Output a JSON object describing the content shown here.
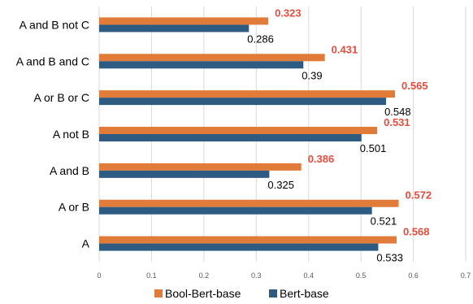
{
  "chart_data": {
    "type": "bar",
    "orientation": "horizontal",
    "categories": [
      "A",
      "A or B",
      "A and B",
      "A not B",
      "A or B or C",
      "A and B and C",
      "A and B not C"
    ],
    "series": [
      {
        "name": "Bool-Bert-base",
        "values": [
          0.568,
          0.572,
          0.386,
          0.531,
          0.565,
          0.431,
          0.323
        ],
        "labels": [
          "0.568",
          "0.572",
          "0.386",
          "0.531",
          "0.565",
          "0.431",
          "0.323"
        ],
        "color": "#e07b39",
        "label_color": "#e84c3d"
      },
      {
        "name": "Bert-base",
        "values": [
          0.533,
          0.521,
          0.325,
          0.501,
          0.548,
          0.39,
          0.286
        ],
        "labels": [
          "0.533",
          "0.521",
          "0.325",
          "0.501",
          "0.548",
          "0.39",
          "0.286"
        ],
        "color": "#2e5b82",
        "label_color": "#000000"
      }
    ],
    "xlim": [
      0,
      0.7
    ],
    "x_ticks": [
      "0",
      "0.1",
      "0.2",
      "0.3",
      "0.4",
      "0.5",
      "0.6",
      "0.7"
    ],
    "x_tick_values": [
      0,
      0.1,
      0.2,
      0.3,
      0.4,
      0.5,
      0.6,
      0.7
    ],
    "grid": "vertical",
    "legend": "bottom",
    "title": "",
    "xlabel": "",
    "ylabel": ""
  }
}
